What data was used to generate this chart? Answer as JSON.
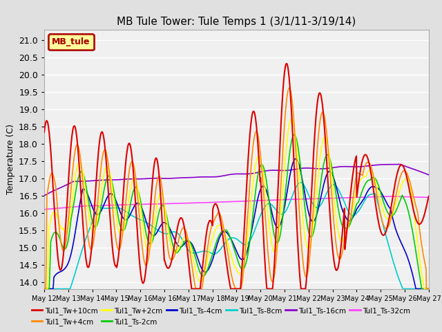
{
  "title": "MB Tule Tower: Tule Temps 1 (3/1/11-3/19/14)",
  "ylabel": "Temperature (C)",
  "ylim": [
    13.8,
    21.3
  ],
  "yticks": [
    14.0,
    14.5,
    15.0,
    15.5,
    16.0,
    16.5,
    17.0,
    17.5,
    18.0,
    18.5,
    19.0,
    19.5,
    20.0,
    20.5,
    21.0
  ],
  "legend_box_label": "MB_tule",
  "legend_box_color": "#aa0000",
  "legend_box_bg": "#ffff99",
  "series": [
    {
      "label": "Tul1_Tw+10cm",
      "color": "#dd0000",
      "lw": 1.5,
      "zorder": 10
    },
    {
      "label": "Tul1_Tw+4cm",
      "color": "#ff8800",
      "lw": 1.2,
      "zorder": 9
    },
    {
      "label": "Tul1_Tw+2cm",
      "color": "#ffff00",
      "lw": 1.2,
      "zorder": 8
    },
    {
      "label": "Tul1_Ts-2cm",
      "color": "#00cc00",
      "lw": 1.2,
      "zorder": 7
    },
    {
      "label": "Tul1_Ts-4cm",
      "color": "#0000cc",
      "lw": 1.2,
      "zorder": 6
    },
    {
      "label": "Tul1_Ts-8cm",
      "color": "#00cccc",
      "lw": 1.2,
      "zorder": 5
    },
    {
      "label": "Tul1_Ts-16cm",
      "color": "#8800cc",
      "lw": 1.2,
      "zorder": 4
    },
    {
      "label": "Tul1_Ts-32cm",
      "color": "#ff44ff",
      "lw": 1.2,
      "zorder": 3
    }
  ],
  "bg_color": "#e0e0e0",
  "plot_bg": "#f0f0f0",
  "grid_color": "#ffffff",
  "title_fontsize": 11,
  "axis_fontsize": 9,
  "tick_fontsize": 9,
  "xtick_labels": [
    "May 12",
    "May 13",
    "May 14",
    "May 15",
    "May 16",
    "May 16",
    "May 17",
    "May 18",
    "May 19",
    "May 20",
    "May 21",
    "May 22",
    "May 23",
    "May 24",
    "May 25",
    "May 26",
    "May 27"
  ]
}
